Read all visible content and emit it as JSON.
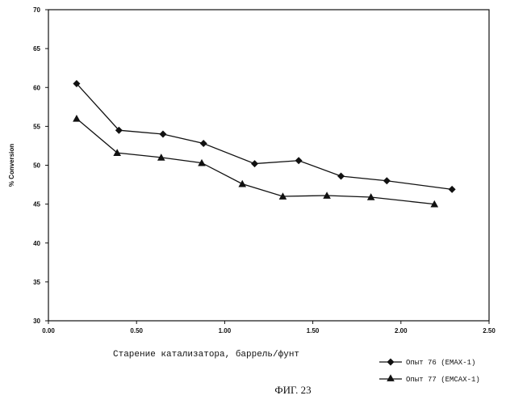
{
  "chart_data": {
    "type": "line",
    "title": "",
    "xlabel": "Старение катализатора, баррель/фунт",
    "ylabel": "% Conversion",
    "xlim": [
      0.0,
      2.5
    ],
    "ylim": [
      30,
      70
    ],
    "x_ticks": [
      "0.00",
      "0.50",
      "1.00",
      "1.50",
      "2.00",
      "2.50"
    ],
    "y_ticks": [
      "30",
      "35",
      "40",
      "45",
      "50",
      "55",
      "60",
      "65",
      "70"
    ],
    "grid": false,
    "legend_position": "bottom-right",
    "series": [
      {
        "name": "Опыт 76 (EMAX-1)",
        "marker": "diamond",
        "x": [
          0.16,
          0.4,
          0.65,
          0.88,
          1.17,
          1.42,
          1.66,
          1.92,
          2.29
        ],
        "y": [
          60.5,
          54.5,
          54.0,
          52.8,
          50.2,
          50.6,
          48.6,
          48.0,
          46.9
        ]
      },
      {
        "name": "Опыт 77 (EMCAX-1)",
        "marker": "triangle",
        "x": [
          0.16,
          0.39,
          0.64,
          0.87,
          1.1,
          1.33,
          1.58,
          1.83,
          2.19
        ],
        "y": [
          56.0,
          51.6,
          51.0,
          50.3,
          47.6,
          46.0,
          46.1,
          45.9,
          45.0
        ]
      }
    ],
    "caption": "ФИГ. 23"
  }
}
